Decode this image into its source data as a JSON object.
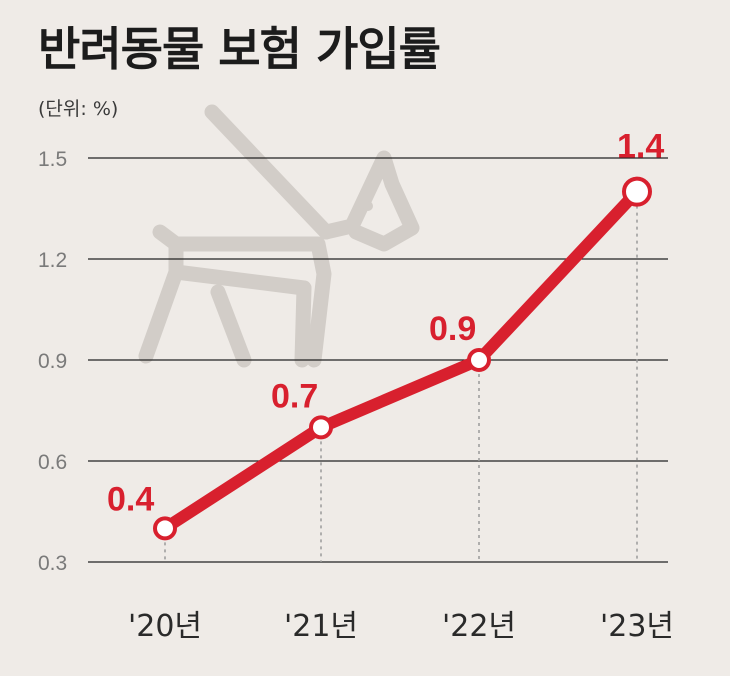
{
  "chart_data": {
    "type": "line",
    "title": "반려동물 보험 가입률",
    "unit_label": "(단위: %)",
    "categories": [
      "'20년",
      "'21년",
      "'22년",
      "'23년"
    ],
    "values": [
      0.4,
      0.7,
      0.9,
      1.4
    ],
    "data_labels": [
      "0.4",
      "0.7",
      "0.9",
      "1.4"
    ],
    "yticks": [
      0.3,
      0.6,
      0.9,
      1.2,
      1.5
    ],
    "ytick_labels": [
      "0.3",
      "0.6",
      "0.9",
      "1.2",
      "1.5"
    ],
    "ylim": [
      0.3,
      1.5
    ],
    "grid": true,
    "legend": "none",
    "line_color": "#d8202e",
    "background_icon": "dog-on-leash-icon"
  }
}
